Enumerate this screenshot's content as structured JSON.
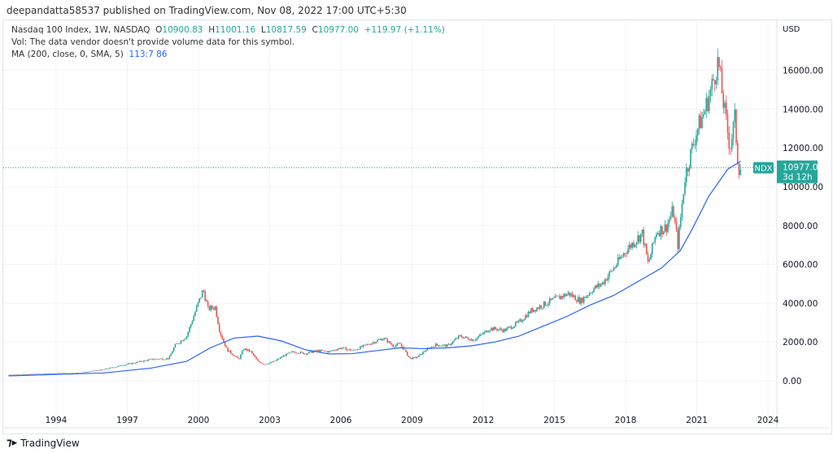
{
  "header": {
    "published": "deepandatta58537 published on TradingView.com, Nov 08, 2022 17:00 UTC+5:30"
  },
  "legend": {
    "symbol": "Nasdaq 100 Index, 1W, NASDAQ",
    "o_label": "O",
    "o": "10900.83",
    "h_label": "H",
    "h": "11001.16",
    "l_label": "L",
    "l": "10817.59",
    "c_label": "C",
    "c": "10977.00",
    "change": "+119.97 (+1.11%)",
    "vol": "Vol: The data vendor doesn't provide volume data for this symbol.",
    "ma_label": "MA (200, close, 0, SMA, 5)",
    "ma_value": "113:7 86"
  },
  "price_tag": {
    "ticker": "NDX",
    "price": "10977.00",
    "countdown": "3d 12h"
  },
  "footer": {
    "brand": "TradingView"
  },
  "colors": {
    "up": "#26a69a",
    "down": "#ef5350",
    "ma": "#2962ff",
    "tag": "#26a69a"
  },
  "chart_data": {
    "type": "candlestick",
    "currency": "USD",
    "ylim": [
      -1000,
      18500
    ],
    "xlim": [
      1991.9,
      2024.4
    ],
    "y_ticks": [
      0,
      2000,
      4000,
      6000,
      8000,
      10000,
      12000,
      14000,
      16000
    ],
    "y_tick_labels": [
      "0.00",
      "2000.00",
      "4000.00",
      "6000.00",
      "8000.00",
      "10000.00",
      "12000.00",
      "14000.00",
      "16000.00"
    ],
    "x_ticks": [
      1994,
      1997,
      2000,
      2003,
      2006,
      2009,
      2012,
      2015,
      2018,
      2021,
      2024
    ],
    "last_price": 10977,
    "price_path": [
      [
        1992,
        300
      ],
      [
        1993,
        340
      ],
      [
        1994,
        380
      ],
      [
        1995,
        400
      ],
      [
        1996,
        580
      ],
      [
        1997,
        850
      ],
      [
        1998,
        1100
      ],
      [
        1998.75,
        1150
      ],
      [
        1999,
        1800
      ],
      [
        1999.5,
        2300
      ],
      [
        1999.9,
        3700
      ],
      [
        2000.2,
        4700
      ],
      [
        2000.4,
        3700
      ],
      [
        2000.7,
        3800
      ],
      [
        2000.9,
        2500
      ],
      [
        2001.2,
        1600
      ],
      [
        2001.7,
        1100
      ],
      [
        2001.9,
        1650
      ],
      [
        2002.2,
        1500
      ],
      [
        2002.5,
        1000
      ],
      [
        2002.8,
        850
      ],
      [
        2003.2,
        1000
      ],
      [
        2003.6,
        1300
      ],
      [
        2004,
        1500
      ],
      [
        2004.5,
        1400
      ],
      [
        2005,
        1550
      ],
      [
        2005.5,
        1500
      ],
      [
        2006,
        1700
      ],
      [
        2006.5,
        1550
      ],
      [
        2007,
        1800
      ],
      [
        2007.8,
        2200
      ],
      [
        2008.2,
        1800
      ],
      [
        2008.5,
        1900
      ],
      [
        2008.9,
        1150
      ],
      [
        2009.2,
        1200
      ],
      [
        2009.6,
        1600
      ],
      [
        2010,
        1850
      ],
      [
        2010.5,
        1800
      ],
      [
        2011,
        2300
      ],
      [
        2011.6,
        2100
      ],
      [
        2012.3,
        2700
      ],
      [
        2012.9,
        2600
      ],
      [
        2013.5,
        3000
      ],
      [
        2014,
        3600
      ],
      [
        2014.5,
        3900
      ],
      [
        2015,
        4200
      ],
      [
        2015.6,
        4500
      ],
      [
        2016.1,
        4100
      ],
      [
        2016.6,
        4700
      ],
      [
        2017,
        5000
      ],
      [
        2017.5,
        5800
      ],
      [
        2018,
        6700
      ],
      [
        2018.7,
        7600
      ],
      [
        2018.95,
        6000
      ],
      [
        2019.3,
        7700
      ],
      [
        2019.7,
        7900
      ],
      [
        2020,
        8800
      ],
      [
        2020.2,
        7000
      ],
      [
        2020.5,
        10500
      ],
      [
        2020.7,
        11500
      ],
      [
        2021,
        12900
      ],
      [
        2021.3,
        13800
      ],
      [
        2021.6,
        15000
      ],
      [
        2021.9,
        16500
      ],
      [
        2022.1,
        14500
      ],
      [
        2022.4,
        12000
      ],
      [
        2022.6,
        13500
      ],
      [
        2022.75,
        11000
      ],
      [
        2022.85,
        10977
      ]
    ],
    "ma_path": [
      [
        1992,
        250
      ],
      [
        1996,
        400
      ],
      [
        1998,
        650
      ],
      [
        1999.5,
        1000
      ],
      [
        2000.5,
        1700
      ],
      [
        2001.5,
        2200
      ],
      [
        2002.5,
        2300
      ],
      [
        2003.5,
        2050
      ],
      [
        2004.5,
        1600
      ],
      [
        2005.5,
        1380
      ],
      [
        2006.5,
        1400
      ],
      [
        2007.5,
        1550
      ],
      [
        2008.5,
        1700
      ],
      [
        2009.5,
        1650
      ],
      [
        2010.5,
        1700
      ],
      [
        2011.5,
        1800
      ],
      [
        2012.5,
        2000
      ],
      [
        2013.5,
        2300
      ],
      [
        2014.5,
        2800
      ],
      [
        2015.5,
        3300
      ],
      [
        2016.5,
        3900
      ],
      [
        2017.5,
        4400
      ],
      [
        2018.5,
        5100
      ],
      [
        2019.5,
        5800
      ],
      [
        2020.3,
        6700
      ],
      [
        2020.8,
        7800
      ],
      [
        2021.5,
        9500
      ],
      [
        2022.3,
        10900
      ],
      [
        2022.85,
        11317
      ]
    ]
  }
}
